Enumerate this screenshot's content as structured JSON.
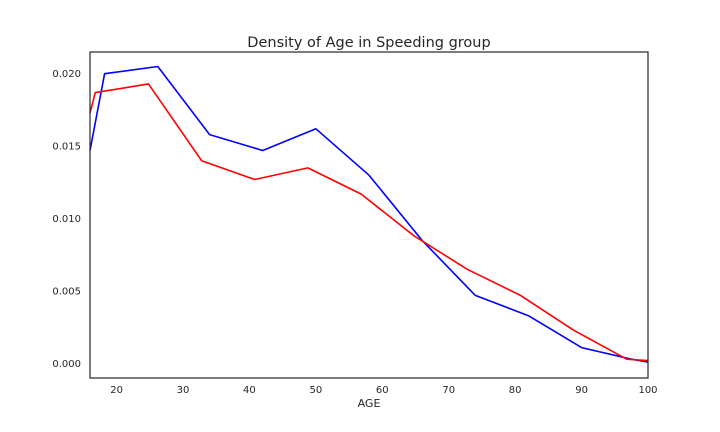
{
  "chart_data": {
    "type": "line",
    "title": "Density of Age in Speeding group",
    "xlabel": "AGE",
    "ylabel": "",
    "xlim": [
      16,
      100
    ],
    "ylim": [
      -0.001,
      0.0215
    ],
    "grid": false,
    "xticks": [
      20,
      30,
      40,
      50,
      60,
      70,
      80,
      90,
      100
    ],
    "xtick_labels": [
      "20",
      "30",
      "40",
      "50",
      "60",
      "70",
      "80",
      "90",
      "100"
    ],
    "yticks": [
      0.0,
      0.005,
      0.01,
      0.015,
      0.02
    ],
    "ytick_labels": [
      "0.000",
      "0.005",
      "0.010",
      "0.015",
      "0.020"
    ],
    "series": [
      {
        "color": "#0000ff",
        "points": [
          [
            16,
            0.0147
          ],
          [
            18.2,
            0.02
          ],
          [
            26.2,
            0.0205
          ],
          [
            34,
            0.0158
          ],
          [
            42,
            0.0147
          ],
          [
            50,
            0.0162
          ],
          [
            58,
            0.013
          ],
          [
            66,
            0.0085
          ],
          [
            74,
            0.0047
          ],
          [
            82,
            0.0033
          ],
          [
            90,
            0.0011
          ],
          [
            97.5,
            0.0003
          ],
          [
            100,
            0.0001
          ]
        ]
      },
      {
        "color": "#ff0000",
        "points": [
          [
            16,
            0.0173
          ],
          [
            16.8,
            0.0187
          ],
          [
            24.8,
            0.0193
          ],
          [
            32.8,
            0.014
          ],
          [
            40.8,
            0.0127
          ],
          [
            48.8,
            0.0135
          ],
          [
            56.8,
            0.0117
          ],
          [
            64.8,
            0.0088
          ],
          [
            72.8,
            0.0065
          ],
          [
            80.8,
            0.0047
          ],
          [
            88.8,
            0.0023
          ],
          [
            96.8,
            0.0003
          ],
          [
            100,
            0.0002
          ]
        ]
      }
    ]
  }
}
